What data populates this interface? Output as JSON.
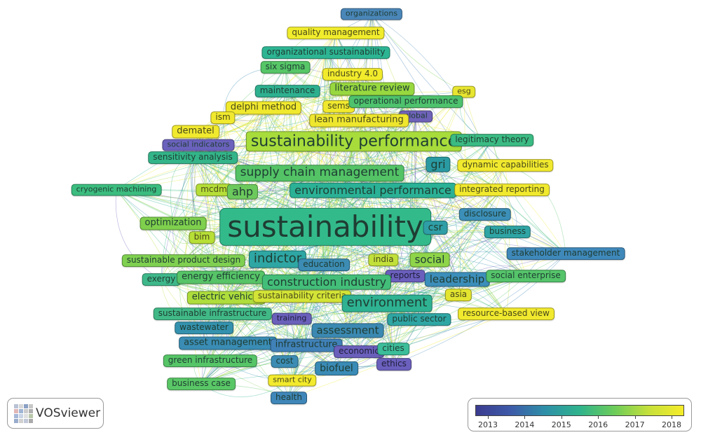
{
  "app": {
    "name": "VOSviewer",
    "logo_label": "VOSviewer"
  },
  "overlay_legend": {
    "years": [
      "2013",
      "2014",
      "2015",
      "2016",
      "2017",
      "2018"
    ],
    "color_scale": [
      "#3b3b8f",
      "#3d5aa8",
      "#2e8fa8",
      "#2fb38c",
      "#6ccc5a",
      "#c6e03a",
      "#f6ec2a"
    ]
  },
  "keywords": [
    {
      "id": "organizations",
      "label": "organizations",
      "color": "#4a86b8"
    },
    {
      "id": "quality-management",
      "label": "quality management",
      "color": "#f1ec2c"
    },
    {
      "id": "organizational-sustainability",
      "label": "organizational sustainability",
      "color": "#2db593"
    },
    {
      "id": "six-sigma",
      "label": "six sigma",
      "color": "#56c667"
    },
    {
      "id": "industry-4-0",
      "label": "industry 4.0",
      "color": "#f2eb2c"
    },
    {
      "id": "maintenance",
      "label": "maintenance",
      "color": "#2eb08f"
    },
    {
      "id": "literature-review",
      "label": "literature review",
      "color": "#98d83f"
    },
    {
      "id": "esg",
      "label": "esg",
      "color": "#e7e52f"
    },
    {
      "id": "delphi-method",
      "label": "delphi method",
      "color": "#f1e92e"
    },
    {
      "id": "sems",
      "label": "sems",
      "color": "#f1e92e"
    },
    {
      "id": "operational-performance",
      "label": "operational performance",
      "color": "#4ec26d"
    },
    {
      "id": "ism",
      "label": "ism",
      "color": "#f1e92e"
    },
    {
      "id": "global",
      "label": "global",
      "color": "#6e62b9"
    },
    {
      "id": "lean-manufacturing",
      "label": "lean manufacturing",
      "color": "#efe72e"
    },
    {
      "id": "dematel",
      "label": "dematel",
      "color": "#f1e92e"
    },
    {
      "id": "sustainability-performance",
      "label": "sustainability performance",
      "color": "#a7dc3b"
    },
    {
      "id": "legitimacy-theory",
      "label": "legitimacy theory",
      "color": "#3bbb83"
    },
    {
      "id": "social-indicators",
      "label": "social indicators",
      "color": "#6b62bd"
    },
    {
      "id": "sensitivity-analysis",
      "label": "sensitivity analysis",
      "color": "#33b489"
    },
    {
      "id": "gri",
      "label": "gri",
      "color": "#2a9aa2"
    },
    {
      "id": "dynamic-capabilities",
      "label": "dynamic capabilities",
      "color": "#f1e92e"
    },
    {
      "id": "supply-chain-management",
      "label": "supply chain management",
      "color": "#53c366"
    },
    {
      "id": "cryogenic-machining",
      "label": "cryogenic machining",
      "color": "#3bbd7f"
    },
    {
      "id": "mcdm",
      "label": "mcdm",
      "color": "#b5de38"
    },
    {
      "id": "ahp",
      "label": "ahp",
      "color": "#6cc95c"
    },
    {
      "id": "environmental-performance",
      "label": "environmental performance",
      "color": "#2ab196"
    },
    {
      "id": "integrated-reporting",
      "label": "integrated reporting",
      "color": "#f1e92e"
    },
    {
      "id": "disclosure",
      "label": "disclosure",
      "color": "#3c8fb8"
    },
    {
      "id": "optimization",
      "label": "optimization",
      "color": "#7fd04d"
    },
    {
      "id": "sustainability",
      "label": "sustainability",
      "color": "#33ba8b"
    },
    {
      "id": "csr",
      "label": "csr",
      "color": "#2f9ea6"
    },
    {
      "id": "business",
      "label": "business",
      "color": "#2fa4a4"
    },
    {
      "id": "bim",
      "label": "bim",
      "color": "#b7df36"
    },
    {
      "id": "stakeholder-management",
      "label": "stakeholder management",
      "color": "#3f88ba"
    },
    {
      "id": "sustainable-product-design",
      "label": "sustainable product design",
      "color": "#7fd050"
    },
    {
      "id": "indictor",
      "label": "indictor",
      "color": "#2ea6a4"
    },
    {
      "id": "education",
      "label": "education",
      "color": "#3c8cb4"
    },
    {
      "id": "india",
      "label": "india",
      "color": "#c2e03a"
    },
    {
      "id": "social",
      "label": "social",
      "color": "#8fd549"
    },
    {
      "id": "exergy",
      "label": "exergy",
      "color": "#3eb88a"
    },
    {
      "id": "energy-efficiency",
      "label": "energy efficiency",
      "color": "#56c467"
    },
    {
      "id": "reports",
      "label": "reports",
      "color": "#6b5fbd"
    },
    {
      "id": "leadership",
      "label": "leadership",
      "color": "#3c8eba"
    },
    {
      "id": "social-enterprise",
      "label": "social enterprise",
      "color": "#55c46a"
    },
    {
      "id": "construction-industry",
      "label": "construction industry",
      "color": "#43be79"
    },
    {
      "id": "electric-vehicle",
      "label": "electric vehicle",
      "color": "#aedd3c"
    },
    {
      "id": "sustainability-criteria",
      "label": "sustainability criteria",
      "color": "#d4e436"
    },
    {
      "id": "asia",
      "label": "asia",
      "color": "#e3e530"
    },
    {
      "id": "environment",
      "label": "environment",
      "color": "#2eb292"
    },
    {
      "id": "sustainable-infrastructure",
      "label": "sustainable infrastructure",
      "color": "#41b987"
    },
    {
      "id": "training",
      "label": "training",
      "color": "#6a60bb"
    },
    {
      "id": "public-sector",
      "label": "public sector",
      "color": "#2ea6a4"
    },
    {
      "id": "resource-based-view",
      "label": "resource-based view",
      "color": "#f1e92e"
    },
    {
      "id": "wastewater",
      "label": "wastewater",
      "color": "#3492ae"
    },
    {
      "id": "assessment",
      "label": "assessment",
      "color": "#3b89b2"
    },
    {
      "id": "asset-management",
      "label": "asset management",
      "color": "#3a8cb4"
    },
    {
      "id": "infrastructure",
      "label": "infrastructure",
      "color": "#4081b8"
    },
    {
      "id": "economic",
      "label": "economic",
      "color": "#6a5fbb"
    },
    {
      "id": "cities",
      "label": "cities",
      "color": "#3cbd9a"
    },
    {
      "id": "green-infrastructure",
      "label": "green infrastructure",
      "color": "#56c567"
    },
    {
      "id": "cost",
      "label": "cost",
      "color": "#3c8cb4"
    },
    {
      "id": "biofuel",
      "label": "biofuel",
      "color": "#3a8bb6"
    },
    {
      "id": "ethics",
      "label": "ethics",
      "color": "#6b60bd"
    },
    {
      "id": "smart-city",
      "label": "smart city",
      "color": "#f2ea2c"
    },
    {
      "id": "business-case",
      "label": "business case",
      "color": "#5ac766"
    },
    {
      "id": "health",
      "label": "health",
      "color": "#3f87b9"
    }
  ]
}
